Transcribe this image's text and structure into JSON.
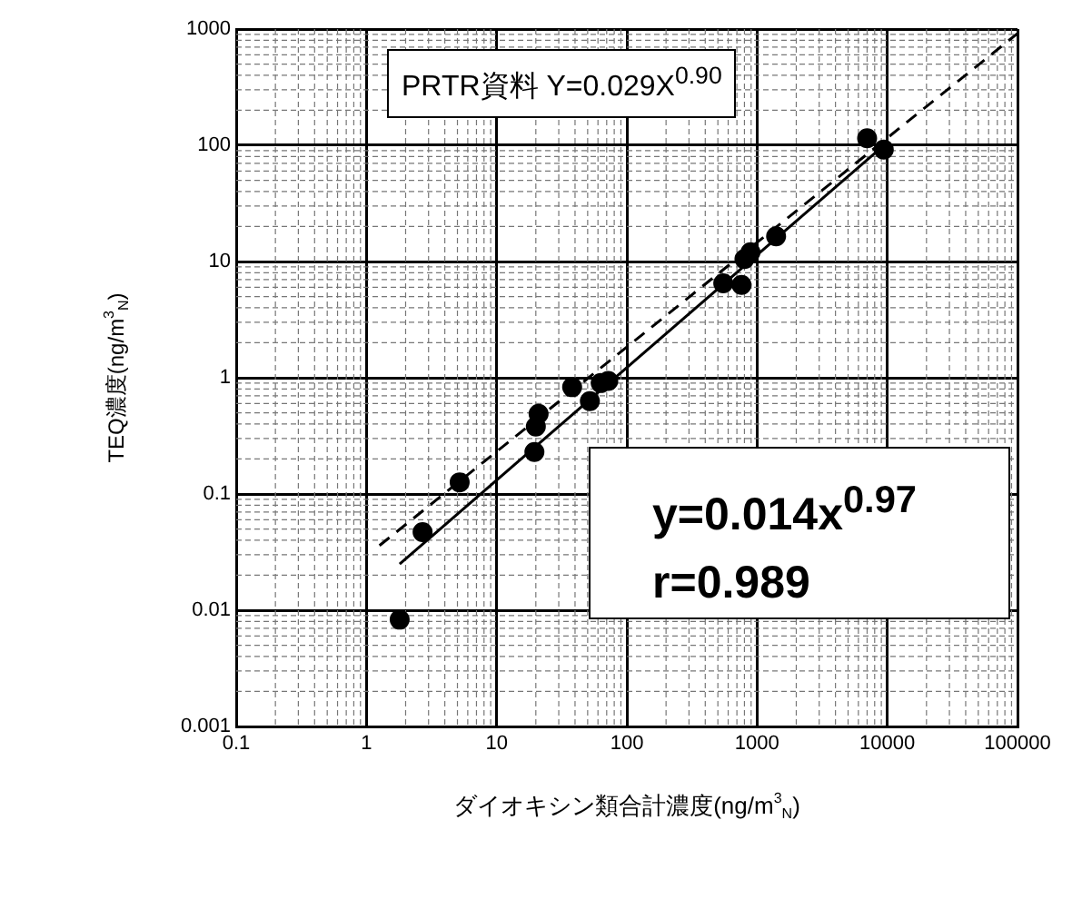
{
  "chart_data": {
    "type": "scatter",
    "xlabel": "ダイオキシン類合計濃度(ng/m$^{3}$$_{N}$)",
    "ylabel": "TEQ濃度(ng/m$^{3}$$_{N}$)",
    "log": "xy",
    "grid": true,
    "legend": false,
    "marker": "circle",
    "xlim": [
      0.1,
      100000
    ],
    "xticks": [
      0.1,
      1,
      10,
      100,
      1000,
      10000,
      100000
    ],
    "ylim": [
      0.001,
      1000
    ],
    "yticks": [
      0.001,
      0.01,
      0.1,
      1,
      10,
      100,
      1000
    ],
    "annotations": [
      "PRTR資料 Y=0.029X$^{0.90}$",
      "y=0.014x$^{0.97}$",
      "r=0.989"
    ],
    "series": [
      {
        "color": "#000000",
        "x": [
          1.8,
          2.7,
          5.2,
          19.5,
          20,
          21,
          38,
          52,
          63,
          72,
          550,
          760,
          800,
          890,
          1400,
          7000,
          9400
        ],
        "values": [
          0.0083,
          0.047,
          0.126,
          0.23,
          0.38,
          0.49,
          0.83,
          0.63,
          0.9,
          0.94,
          6.5,
          6.3,
          10.5,
          12,
          16.5,
          115,
          92
        ]
      },
      {
        "type": "line",
        "color": "#000000",
        "line_style": "solid",
        "marker": "none",
        "x": [
          1.8,
          10000
        ],
        "values": [
          0.025,
          106
        ]
      },
      {
        "type": "line",
        "color": "#000000",
        "line_style": "dashed",
        "marker": "none",
        "x": [
          1.26,
          100000
        ],
        "values": [
          0.036,
          917
        ]
      }
    ]
  }
}
